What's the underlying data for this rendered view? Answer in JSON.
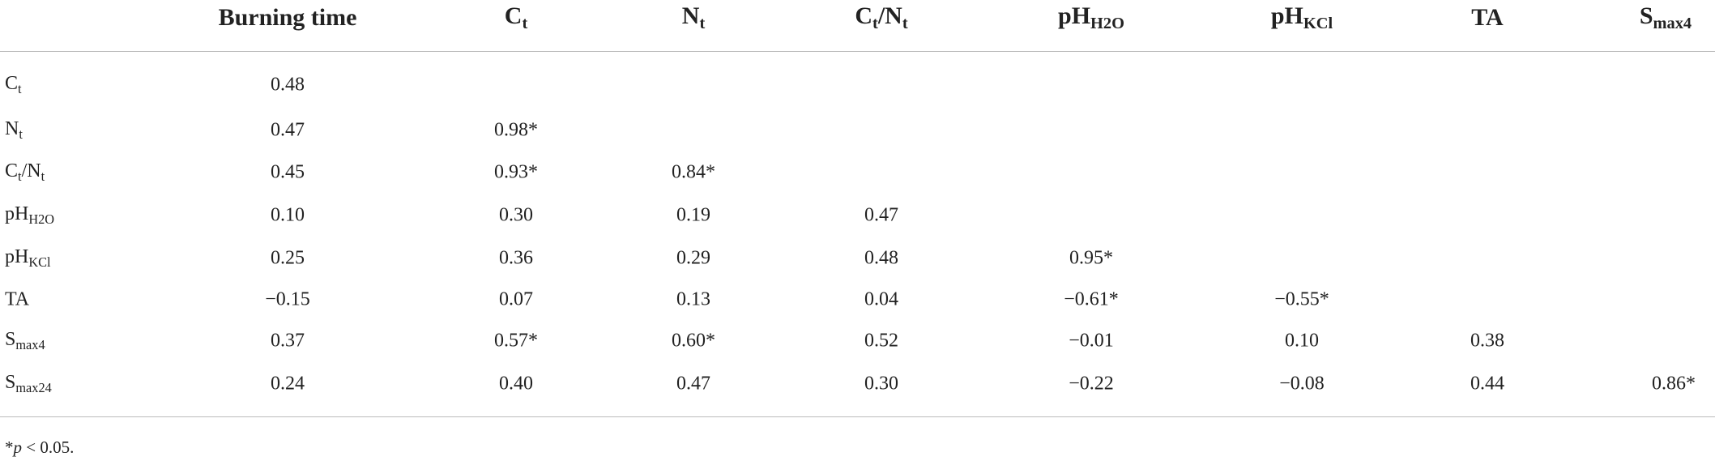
{
  "table": {
    "columns": [
      [
        {
          "text": "Burning time"
        }
      ],
      [
        {
          "text": "C"
        },
        {
          "sub": "t"
        }
      ],
      [
        {
          "text": "N"
        },
        {
          "sub": "t"
        }
      ],
      [
        {
          "text": "C"
        },
        {
          "sub": "t"
        },
        {
          "text": "/N"
        },
        {
          "sub": "t"
        }
      ],
      [
        {
          "text": "pH"
        },
        {
          "sub": "H2O"
        }
      ],
      [
        {
          "text": "pH"
        },
        {
          "sub": "KCl"
        }
      ],
      [
        {
          "text": "TA"
        }
      ],
      [
        {
          "text": "S"
        },
        {
          "sub": "max4"
        }
      ]
    ],
    "rows": [
      {
        "label": [
          {
            "text": "C"
          },
          {
            "sub": "t"
          }
        ],
        "values": [
          "0.48"
        ]
      },
      {
        "label": [
          {
            "text": "N"
          },
          {
            "sub": "t"
          }
        ],
        "values": [
          "0.47",
          "0.98*"
        ]
      },
      {
        "label": [
          {
            "text": "C"
          },
          {
            "sub": "t"
          },
          {
            "text": "/N"
          },
          {
            "sub": "t"
          }
        ],
        "values": [
          "0.45",
          "0.93*",
          "0.84*"
        ]
      },
      {
        "label": [
          {
            "text": "pH"
          },
          {
            "sub": "H2O"
          }
        ],
        "values": [
          "0.10",
          "0.30",
          "0.19",
          "0.47"
        ]
      },
      {
        "label": [
          {
            "text": "pH"
          },
          {
            "sub": "KCl"
          }
        ],
        "values": [
          "0.25",
          "0.36",
          "0.29",
          "0.48",
          "0.95*"
        ]
      },
      {
        "label": [
          {
            "text": "TA"
          }
        ],
        "values": [
          "−0.15",
          "0.07",
          "0.13",
          "0.04",
          "−0.61*",
          "−0.55*"
        ]
      },
      {
        "label": [
          {
            "text": "S"
          },
          {
            "sub": "max4"
          }
        ],
        "values": [
          "0.37",
          "0.57*",
          "0.60*",
          "0.52",
          "−0.01",
          "0.10",
          "0.38"
        ]
      },
      {
        "label": [
          {
            "text": "S"
          },
          {
            "sub": "max24"
          }
        ],
        "values": [
          "0.24",
          "0.40",
          "0.47",
          "0.30",
          "−0.22",
          "−0.08",
          "0.44",
          "0.86*"
        ]
      }
    ],
    "footnote": [
      {
        "text": "*"
      },
      {
        "italic": "p"
      },
      {
        "text": " < 0.05."
      }
    ]
  }
}
